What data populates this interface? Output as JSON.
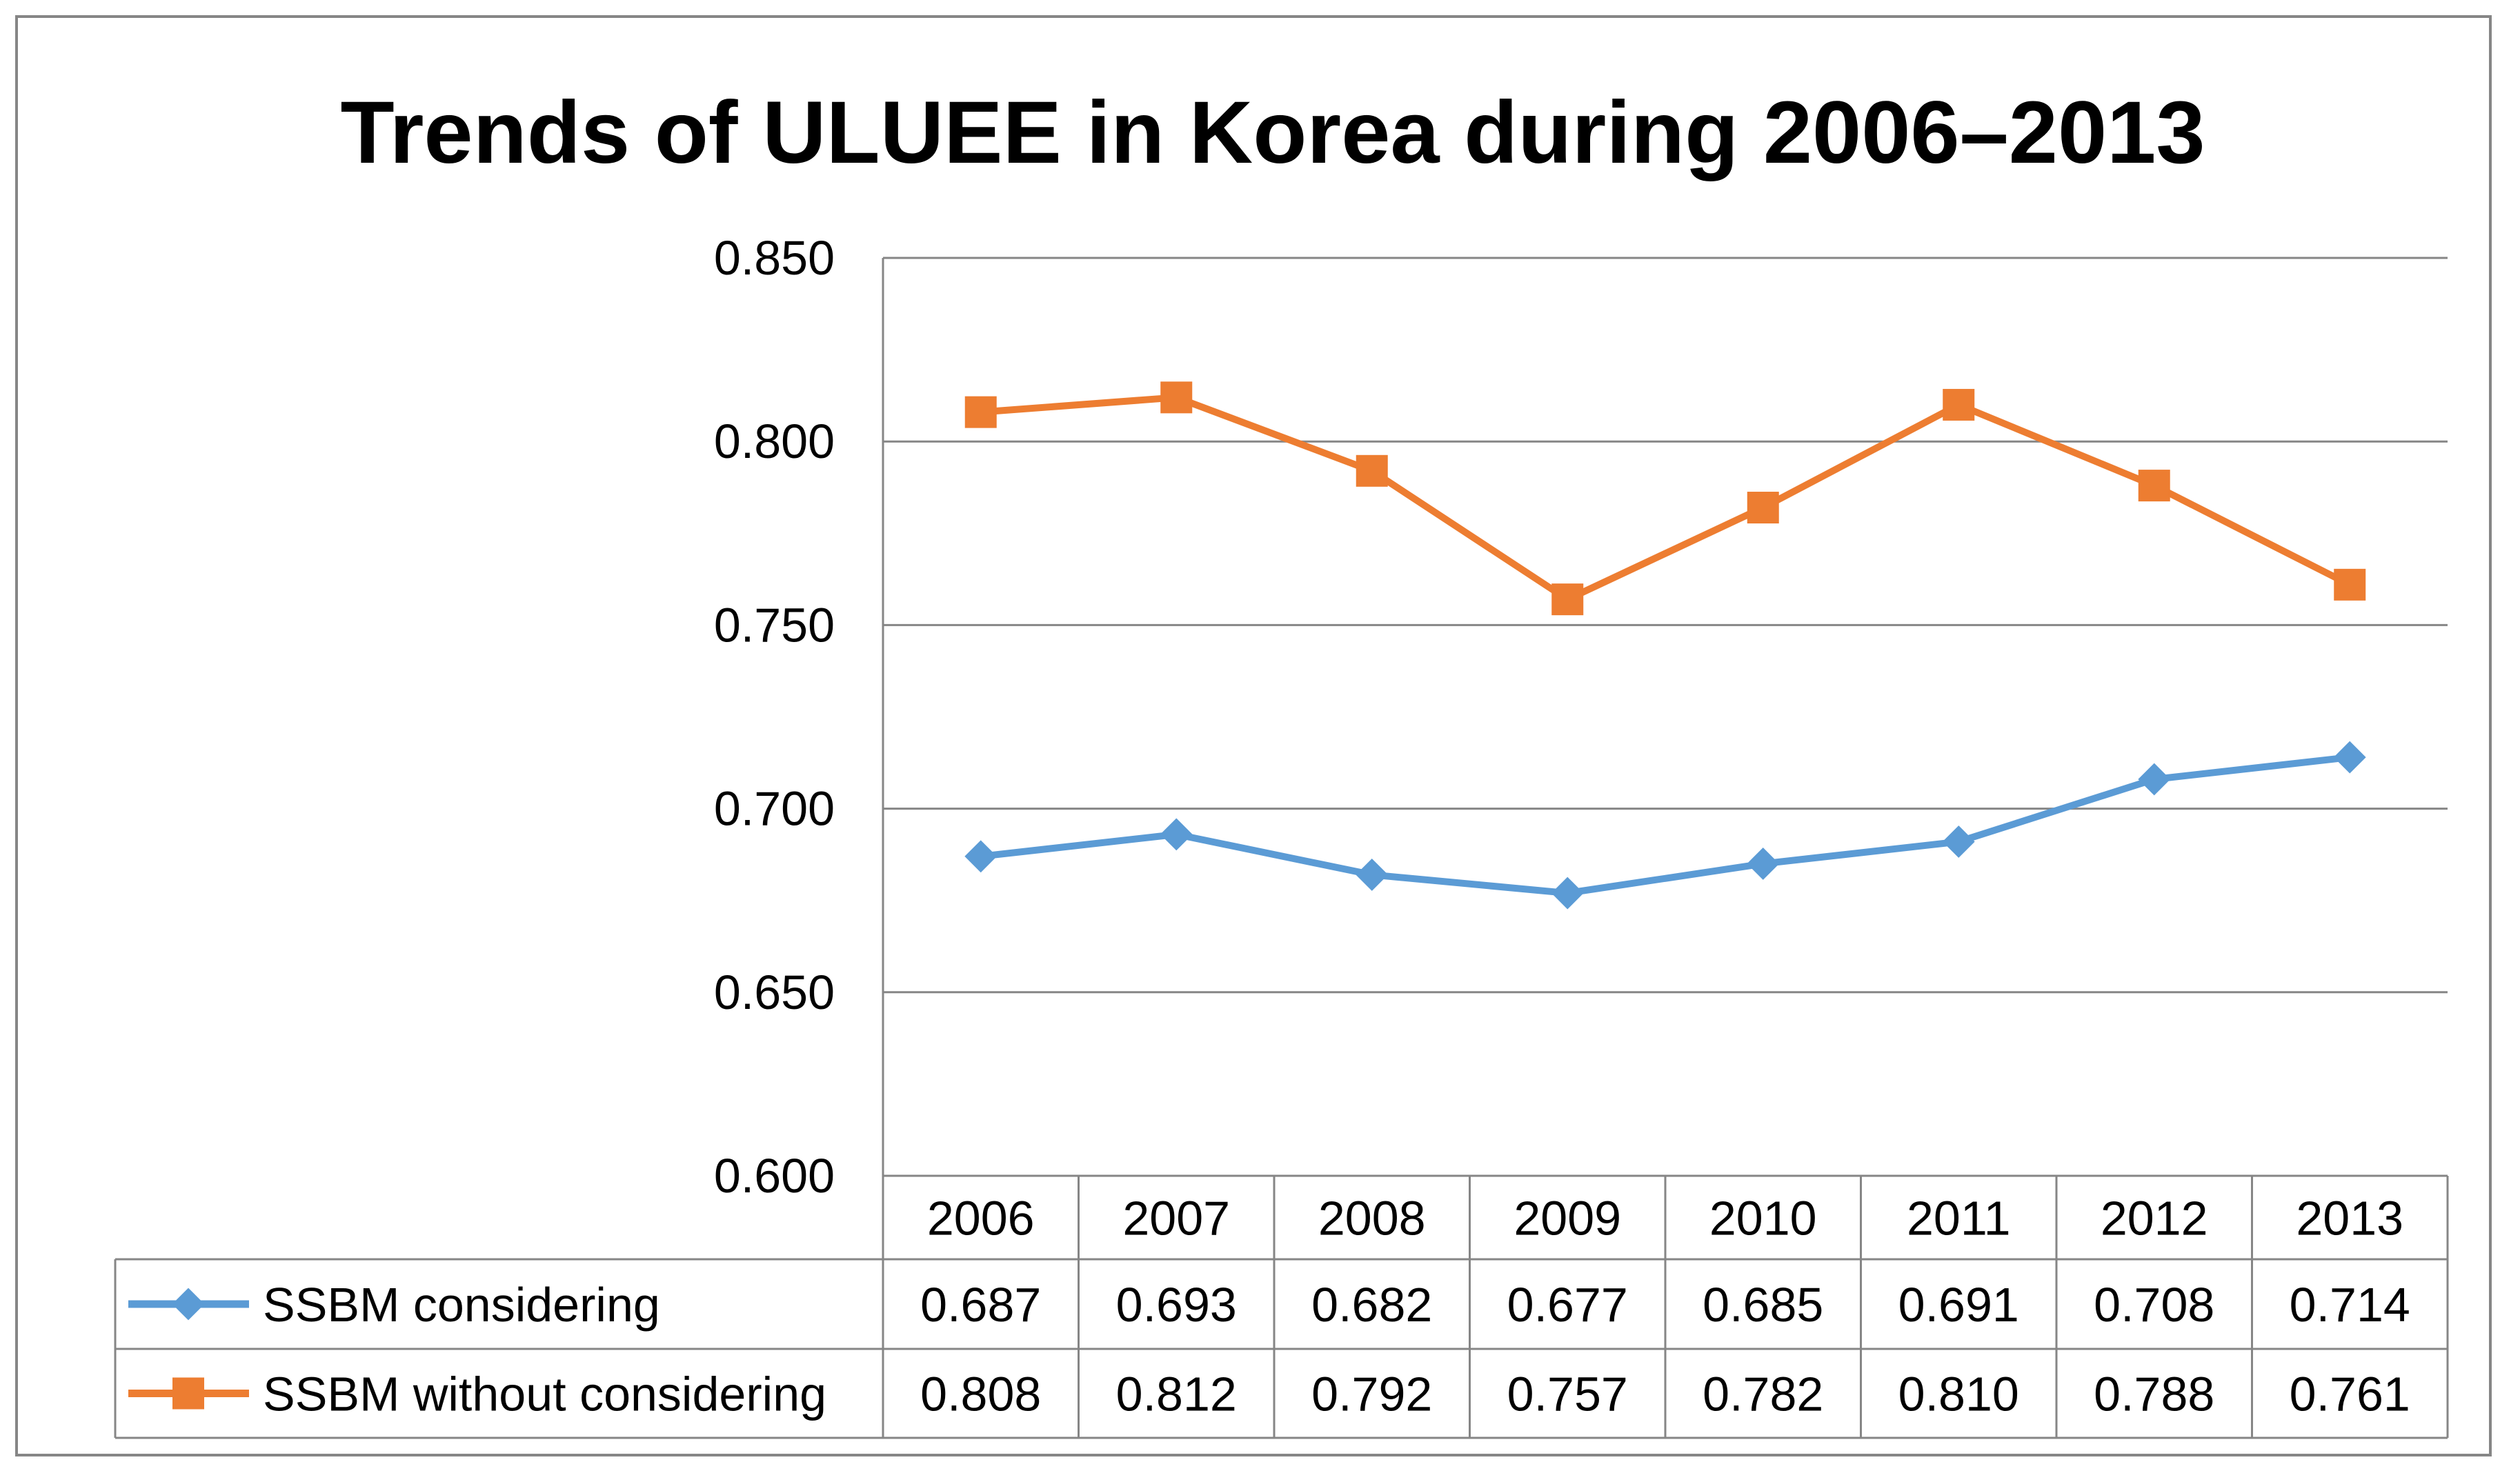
{
  "chart_data": {
    "type": "line",
    "title": "Trends of ULUEE in Korea during 2006–2013",
    "categories": [
      "2006",
      "2007",
      "2008",
      "2009",
      "2010",
      "2011",
      "2012",
      "2013"
    ],
    "ylim": [
      0.6,
      0.85
    ],
    "yticks": [
      "0.850",
      "0.800",
      "0.750",
      "0.700",
      "0.650",
      "0.600"
    ],
    "ytick_values": [
      0.85,
      0.8,
      0.75,
      0.7,
      0.65,
      0.6
    ],
    "grid": true,
    "legend": "data-table",
    "series": [
      {
        "name": "SSBM considering",
        "color": "#5b9bd5",
        "marker": "diamond",
        "values": [
          0.687,
          0.693,
          0.682,
          0.677,
          0.685,
          0.691,
          0.708,
          0.714
        ],
        "labels": [
          "0.687",
          "0.693",
          "0.682",
          "0.677",
          "0.685",
          "0.691",
          "0.708",
          "0.714"
        ]
      },
      {
        "name": "SSBM without considering",
        "color": "#ed7d31",
        "marker": "square",
        "values": [
          0.808,
          0.812,
          0.792,
          0.757,
          0.782,
          0.81,
          0.788,
          0.761
        ],
        "labels": [
          "0.808",
          "0.812",
          "0.792",
          "0.757",
          "0.782",
          "0.810",
          "0.788",
          "0.761"
        ]
      }
    ]
  }
}
